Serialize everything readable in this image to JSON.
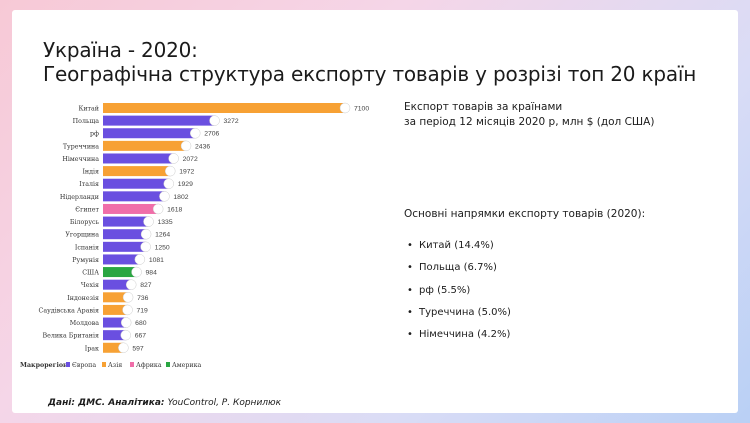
{
  "header": {
    "title_line1": "Україна - 2020:",
    "title_line2": "Географічна структура експорту товарів у розрізі топ 20 країн"
  },
  "export_info": {
    "line1": "Експорт товарів за країнами",
    "line2": "за період 12 місяців 2020 р, млн $ (дол США)"
  },
  "directions": {
    "title": "Основні напрямки експорту товарів (2020):",
    "items": [
      "Китай (14.4%)",
      "Польща (6.7%)",
      "рф (5.5%)",
      "Туреччина (5.0%)",
      "Німеччина (4.2%)"
    ]
  },
  "source": {
    "prefix": "Дані: ДМС. Аналітика: ",
    "suffix": "YouControl, Р. Корнилюк"
  },
  "colors": {
    "Європа": "#6a4fe0",
    "Азія": "#f7a134",
    "Африка": "#f06ea9",
    "Америка": "#2aa642"
  },
  "chart_data": {
    "type": "bar",
    "orientation": "horizontal",
    "categories": [
      "Китай",
      "Польща",
      "рф",
      "Туреччина",
      "Німеччина",
      "Індія",
      "Італія",
      "Нідерланди",
      "Єгипет",
      "Білорусь",
      "Угорщина",
      "Іспанія",
      "Румунія",
      "США",
      "Чехія",
      "Індонезія",
      "Саудівська Аравія",
      "Молдова",
      "Велика Британія",
      "Ірак"
    ],
    "values": [
      7100,
      3272,
      2706,
      2436,
      2072,
      1972,
      1929,
      1802,
      1618,
      1335,
      1264,
      1250,
      1081,
      984,
      827,
      736,
      719,
      680,
      667,
      597
    ],
    "region": [
      "Азія",
      "Європа",
      "Європа",
      "Азія",
      "Європа",
      "Азія",
      "Європа",
      "Європа",
      "Африка",
      "Європа",
      "Європа",
      "Європа",
      "Європа",
      "Америка",
      "Європа",
      "Азія",
      "Азія",
      "Європа",
      "Європа",
      "Азія"
    ],
    "xlim": [
      0,
      7100
    ],
    "legend": {
      "title": "Макрорегіон:",
      "entries": [
        "Європа",
        "Азія",
        "Африка",
        "Америка"
      ],
      "placement": "bottom"
    }
  }
}
